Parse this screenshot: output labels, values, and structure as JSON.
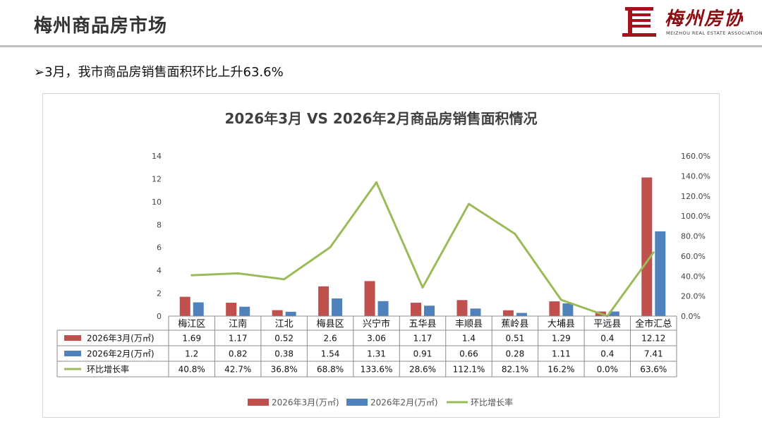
{
  "header": {
    "title": "梅州商品房市场",
    "logo_text": "梅州房协",
    "logo_sub": "MEIZHOU REAL ESTATE ASSOCIATION"
  },
  "subtitle": "➢3月，我市商品房销售面积环比上升63.6%",
  "chart_data": {
    "type": "bar",
    "title": "2026年3月 VS 2026年2月商品房销售面积情况",
    "categories": [
      "梅江区",
      "江南",
      "江北",
      "梅县区",
      "兴宁市",
      "五华县",
      "丰顺县",
      "蕉岭县",
      "大埔县",
      "平远县",
      "全市汇总"
    ],
    "series": [
      {
        "name": "2026年3月(万㎡)",
        "type": "bar",
        "axis": "left",
        "color": "#c0504d",
        "values": [
          1.69,
          1.17,
          0.52,
          2.6,
          3.06,
          1.17,
          1.4,
          0.51,
          1.29,
          0.4,
          12.12
        ]
      },
      {
        "name": "2026年2月(万㎡)",
        "type": "bar",
        "axis": "left",
        "color": "#4f81bd",
        "values": [
          1.2,
          0.82,
          0.38,
          1.54,
          1.31,
          0.91,
          0.66,
          0.28,
          1.11,
          0.4,
          7.41
        ]
      },
      {
        "name": "环比增长率",
        "type": "line",
        "axis": "right",
        "color": "#9bbb59",
        "values": [
          40.8,
          42.7,
          36.8,
          68.8,
          133.6,
          28.6,
          112.1,
          82.1,
          16.2,
          0.0,
          63.6
        ]
      }
    ],
    "table_rows": [
      [
        "1.69",
        "1.17",
        "0.52",
        "2.6",
        "3.06",
        "1.17",
        "1.4",
        "0.51",
        "1.29",
        "0.4",
        "12.12"
      ],
      [
        "1.2",
        "0.82",
        "0.38",
        "1.54",
        "1.31",
        "0.91",
        "0.66",
        "0.28",
        "1.11",
        "0.4",
        "7.41"
      ],
      [
        "40.8%",
        "42.7%",
        "36.8%",
        "68.8%",
        "133.6%",
        "28.6%",
        "112.1%",
        "82.1%",
        "16.2%",
        "0.0%",
        "63.6%"
      ]
    ],
    "ylim_left": [
      0,
      14
    ],
    "yticks_left": [
      "0",
      "2",
      "4",
      "6",
      "8",
      "10",
      "12",
      "14"
    ],
    "ylim_right": [
      0,
      160
    ],
    "yticks_right": [
      "0.0%",
      "20.0%",
      "40.0%",
      "60.0%",
      "80.0%",
      "100.0%",
      "120.0%",
      "140.0%",
      "160.0%"
    ],
    "legend": [
      "2026年3月(万㎡)",
      "2026年2月(万㎡)",
      "环比增长率"
    ],
    "legend_position": "bottom",
    "grid": false
  }
}
